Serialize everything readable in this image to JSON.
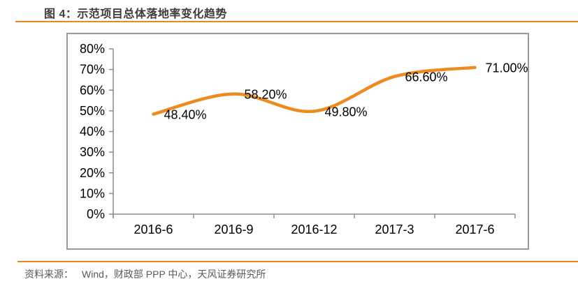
{
  "header": {
    "title": "图 4：示范项目总体落地率变化趋势"
  },
  "chart_data": {
    "type": "line",
    "title": "示范项目总体落地率变化趋势",
    "categories": [
      "2016-6",
      "2016-9",
      "2016-12",
      "2017-3",
      "2017-6"
    ],
    "values": [
      48.4,
      58.2,
      49.8,
      66.6,
      71.0
    ],
    "data_labels": [
      "48.40%",
      "58.20%",
      "49.80%",
      "66.60%",
      "71.00%"
    ],
    "xlabel": "",
    "ylabel": "",
    "ylim": [
      0,
      80
    ],
    "ytick_step": 10,
    "ytick_labels": [
      "0%",
      "10%",
      "20%",
      "30%",
      "40%",
      "50%",
      "60%",
      "70%",
      "80%"
    ],
    "grid": false,
    "legend": "none",
    "smooth": true,
    "line_color": "#ED8A20"
  },
  "footer": {
    "source_label": "资料来源：",
    "source_text": "Wind，财政部 PPP 中心，天风证券研究所"
  },
  "colors": {
    "accent": "#ED8522",
    "line": "#ED8A20",
    "border": "#999999",
    "axis": "#8C8C8C",
    "title_text": "#3F3B3A",
    "label_text": "#000000",
    "source_text": "#595959"
  }
}
